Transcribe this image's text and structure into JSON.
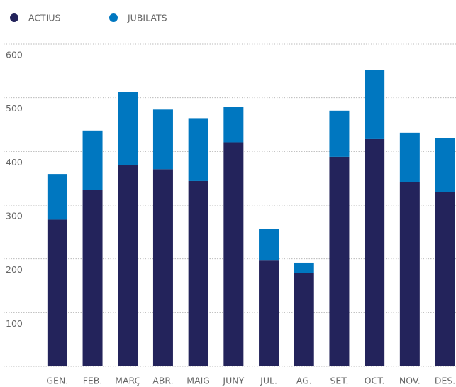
{
  "chart_data": {
    "type": "bar",
    "stacked": true,
    "categories": [
      "GEN.",
      "FEB.",
      "MARÇ",
      "ABR.",
      "MAIG",
      "JUNY",
      "JUL.",
      "AG.",
      "SET.",
      "OCT.",
      "NOV.",
      "DES."
    ],
    "series": [
      {
        "name": "ACTIUS",
        "color": "#23235b",
        "values": [
          273,
          328,
          374,
          367,
          345,
          417,
          198,
          174,
          390,
          423,
          343,
          324
        ]
      },
      {
        "name": "JUBILATS",
        "color": "#0077c0",
        "values": [
          85,
          111,
          137,
          111,
          117,
          66,
          58,
          19,
          86,
          129,
          92,
          101
        ]
      }
    ],
    "ylim": [
      0,
      600
    ],
    "yticks": [
      100,
      200,
      300,
      400,
      500,
      600
    ],
    "grid": true
  }
}
